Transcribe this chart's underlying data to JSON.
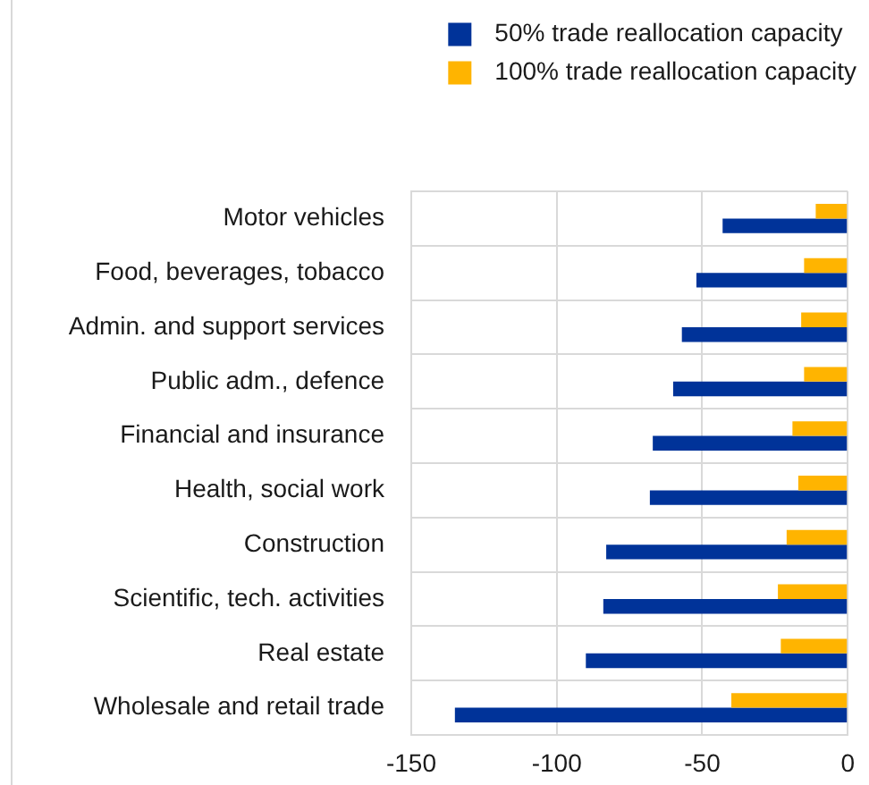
{
  "chart_data": {
    "type": "bar",
    "orientation": "horizontal",
    "categories": [
      "Motor vehicles",
      "Food, beverages, tobacco",
      "Admin. and support services",
      "Public adm., defence",
      "Financial and insurance",
      "Health, social work",
      "Construction",
      "Scientific, tech. activities",
      "Real estate",
      "Wholesale and retail trade"
    ],
    "series": [
      {
        "name": "50% trade reallocation capacity",
        "color": "#003399",
        "values": [
          -43,
          -52,
          -57,
          -60,
          -67,
          -68,
          -83,
          -84,
          -90,
          -135
        ]
      },
      {
        "name": "100% trade reallocation capacity",
        "color": "#ffb400",
        "values": [
          -11,
          -15,
          -16,
          -15,
          -19,
          -17,
          -21,
          -24,
          -23,
          -40
        ]
      }
    ],
    "xlim": [
      -150,
      0
    ],
    "xticks": [
      -150,
      -100,
      -50,
      0
    ],
    "grid": true,
    "legend": "top right"
  }
}
